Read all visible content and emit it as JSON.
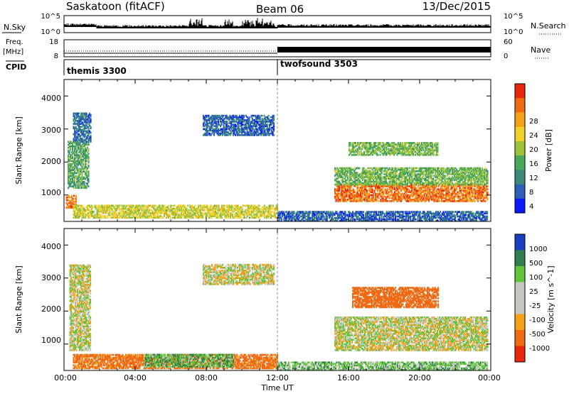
{
  "header": {
    "station": "Saskatoon (fitACF)",
    "beam": "Beam 06",
    "date": "13/Dec/2015"
  },
  "noise_panel": {
    "left_label": "N.Sky",
    "right_label": "N.Search",
    "left_ticks": [
      "10^5",
      "10^0"
    ],
    "right_ticks": [
      "10^5",
      "10^0"
    ]
  },
  "freq_panel": {
    "left_label_1": "Freq.",
    "left_label_2": "[MHz]",
    "right_label": "Nave",
    "left_ticks": [
      "18",
      "8"
    ],
    "right_ticks": [
      "60",
      "0"
    ]
  },
  "cpid": {
    "label": "CPID",
    "modes": [
      "themis 3300",
      "twofsound 3503"
    ]
  },
  "power_panel": {
    "ylabel": "Slant Range [km]",
    "yticks": [
      "4000",
      "3000",
      "2000",
      "1000"
    ],
    "colorbar_label": "Power [dB]",
    "colorbar_ticks": [
      "28",
      "24",
      "20",
      "16",
      "12",
      "8",
      "4"
    ],
    "colors": [
      "#0a1aff",
      "#2c5fb8",
      "#3d8a7a",
      "#4aa85a",
      "#9cc33a",
      "#f2d12a",
      "#f5a019",
      "#f06a14",
      "#e8280e"
    ]
  },
  "velocity_panel": {
    "ylabel": "Slant Range [km]",
    "yticks": [
      "4000",
      "3000",
      "2000",
      "1000"
    ],
    "colorbar_label": "Velocity [m s^-1]",
    "colorbar_ticks": [
      "1000",
      "500",
      "100",
      "25",
      "-25",
      "-100",
      "-500",
      "-1000"
    ],
    "colors": [
      "#1a3fc0",
      "#2f7f4f",
      "#62c43a",
      "#c8c8c0",
      "#c8c8c0",
      "#f5a019",
      "#f06a14",
      "#e8280e"
    ]
  },
  "x_axis": {
    "title": "Time UT",
    "ticks": [
      "00:00",
      "04:00",
      "08:00",
      "12:00",
      "16:00",
      "20:00",
      "00:00"
    ]
  },
  "chart_data": {
    "type": "heatmap",
    "title": "Saskatoon (fitACF) Beam 06 13/Dec/2015",
    "xlabel": "Time UT",
    "ylabel": "Slant Range [km]",
    "xlim_hours": [
      0,
      24
    ],
    "ylim": [
      200,
      4500
    ],
    "mode_change_hour": 12,
    "power_features": [
      {
        "t": [
          0.1,
          0.7
        ],
        "r": [
          600,
          1000
        ],
        "value_dB": 26
      },
      {
        "t": [
          0.2,
          1.4
        ],
        "r": [
          1200,
          2600
        ],
        "value_dB": 12
      },
      {
        "t": [
          0.5,
          1.5
        ],
        "r": [
          2600,
          3500
        ],
        "value_dB": 7
      },
      {
        "t": [
          7.8,
          11.8
        ],
        "r": [
          2800,
          3400
        ],
        "value_dB": 6
      },
      {
        "t": [
          0.5,
          12
        ],
        "r": [
          300,
          700
        ],
        "value_dB": 18
      },
      {
        "t": [
          15.2,
          23.8
        ],
        "r": [
          800,
          1300
        ],
        "value_dB": 26
      },
      {
        "t": [
          15.2,
          23.8
        ],
        "r": [
          1300,
          1800
        ],
        "value_dB": 14
      },
      {
        "t": [
          16.0,
          21.0
        ],
        "r": [
          2200,
          2600
        ],
        "value_dB": 14
      },
      {
        "t": [
          12,
          23.8
        ],
        "r": [
          200,
          500
        ],
        "value_dB": 6
      }
    ],
    "velocity_features": [
      {
        "t": [
          0.3,
          1.5
        ],
        "r": [
          800,
          3400
        ],
        "value_ms": 0
      },
      {
        "t": [
          7.8,
          11.8
        ],
        "r": [
          2800,
          3400
        ],
        "value_ms": 0
      },
      {
        "t": [
          0.5,
          12
        ],
        "r": [
          250,
          700
        ],
        "value_ms": -150
      },
      {
        "t": [
          4.5,
          9.5
        ],
        "r": [
          300,
          700
        ],
        "value_ms": 80
      },
      {
        "t": [
          15.2,
          23.8
        ],
        "r": [
          800,
          1800
        ],
        "value_ms": 0
      },
      {
        "t": [
          16.2,
          21.0
        ],
        "r": [
          2100,
          2700
        ],
        "value_ms": -300
      },
      {
        "t": [
          12,
          23.8
        ],
        "r": [
          200,
          450
        ],
        "value_ms": 60
      }
    ]
  }
}
